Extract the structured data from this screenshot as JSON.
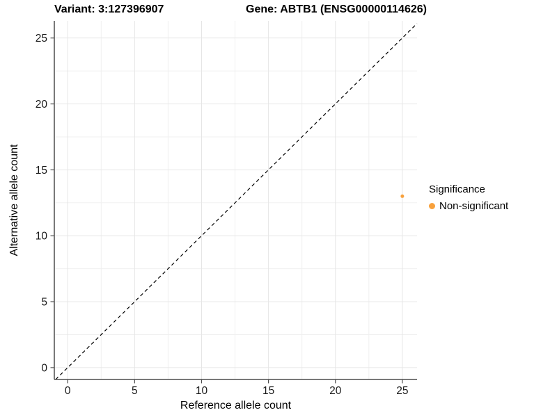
{
  "titles": {
    "variant": "Variant: 3:127396907",
    "gene": "Gene: ABTB1 (ENSG00000114626)"
  },
  "chart_data": {
    "type": "scatter",
    "xlabel": "Reference allele count",
    "ylabel": "Alternative allele count",
    "xlim": [
      -1.0,
      26.1
    ],
    "ylim": [
      -0.9,
      26.3
    ],
    "x_ticks": [
      0,
      5,
      10,
      15,
      20,
      25
    ],
    "y_ticks": [
      0,
      5,
      10,
      15,
      20,
      25
    ],
    "x_minor_ticks": [
      2.5,
      7.5,
      12.5,
      17.5,
      22.5
    ],
    "y_minor_ticks": [
      2.5,
      7.5,
      12.5,
      17.5,
      22.5
    ],
    "grid": true,
    "points": [
      {
        "x": 25,
        "y": 13,
        "series": "Non-significant",
        "color": "#F8A13C",
        "radius": 2.5
      }
    ],
    "reference_line": {
      "kind": "identity-diagonal",
      "equation": "y = x",
      "style": "dashed",
      "color": "#000000"
    },
    "legend": {
      "title": "Significance",
      "position": "right",
      "items": [
        {
          "label": "Non-significant",
          "color": "#F8A13C"
        }
      ]
    },
    "colors": {
      "axis_line": "#4D4D4D",
      "tick_label": "#1A1A1A",
      "grid_major": "#E6E6E6",
      "grid_minor": "#F0F0F0",
      "point_accent": "#F8A13C"
    }
  }
}
